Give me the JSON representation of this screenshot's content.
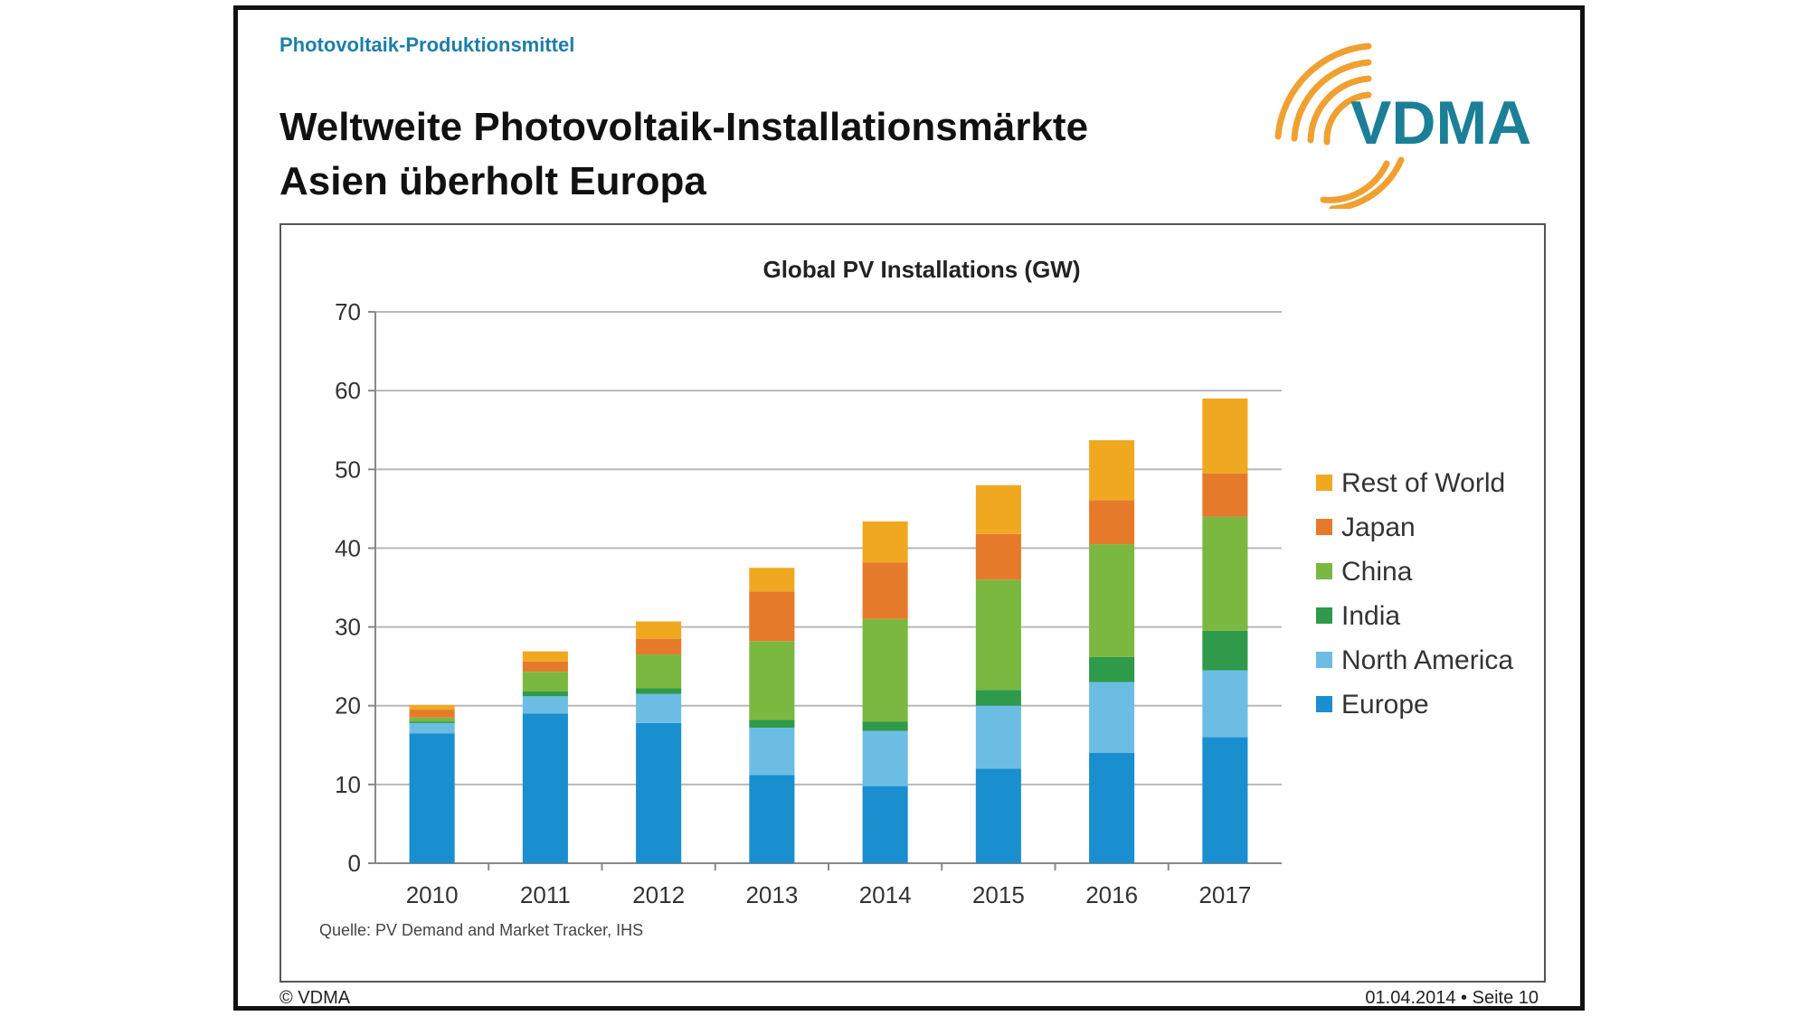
{
  "slide": {
    "kicker": "Photovoltaik-Produktionsmittel",
    "title_line1": "Weltweite Photovoltaik-Installationsmärkte",
    "title_line2": "Asien überholt Europa",
    "logo_text": "VDMA",
    "footer_left": "© VDMA",
    "footer_right": "01.04.2014 • Seite 10"
  },
  "chart_data": {
    "type": "bar",
    "stacked": true,
    "title": "Global PV Installations (GW)",
    "source": "Quelle: PV Demand and Market Tracker, IHS",
    "categories": [
      "2010",
      "2011",
      "2012",
      "2013",
      "2014",
      "2015",
      "2016",
      "2017"
    ],
    "ylim": [
      0,
      70
    ],
    "yticks": [
      0,
      10,
      20,
      30,
      40,
      50,
      60,
      70
    ],
    "grid": true,
    "legend_position": "right",
    "series": [
      {
        "name": "Europe",
        "color": "#1a8fcf",
        "values": [
          16.5,
          19,
          17.8,
          11.2,
          9.8,
          12,
          14,
          16
        ]
      },
      {
        "name": "North America",
        "color": "#6cbde4",
        "values": [
          1.3,
          2.2,
          3.7,
          6,
          7,
          8,
          9,
          8.5
        ]
      },
      {
        "name": "India",
        "color": "#2e9a4a",
        "values": [
          0.2,
          0.6,
          0.7,
          1,
          1.2,
          2,
          3.2,
          5
        ]
      },
      {
        "name": "China",
        "color": "#7ab840",
        "values": [
          0.5,
          2.5,
          4.3,
          10,
          13,
          14,
          14.3,
          14.5
        ]
      },
      {
        "name": "Japan",
        "color": "#e57b2a",
        "values": [
          1,
          1.3,
          2,
          6.3,
          7.2,
          5.8,
          5.6,
          5.5
        ]
      },
      {
        "name": "Rest of World",
        "color": "#f0a820",
        "values": [
          0.6,
          1.3,
          2.2,
          3,
          5.2,
          6.2,
          7.6,
          9.5
        ]
      }
    ]
  }
}
